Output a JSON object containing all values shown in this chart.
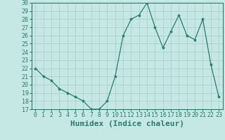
{
  "xlabel": "Humidex (Indice chaleur)",
  "x": [
    0,
    1,
    2,
    3,
    4,
    5,
    6,
    7,
    8,
    9,
    10,
    11,
    12,
    13,
    14,
    15,
    16,
    17,
    18,
    19,
    20,
    21,
    22,
    23
  ],
  "y": [
    22,
    21,
    20.5,
    19.5,
    19,
    18.5,
    18,
    17,
    17,
    18,
    21,
    26,
    28,
    28.5,
    30,
    27,
    24.5,
    26.5,
    28.5,
    26,
    25.5,
    28,
    22.5,
    18.5
  ],
  "line_color": "#2d7a6e",
  "marker": "*",
  "marker_size": 3,
  "bg_color": "#c5e8e5",
  "grid_color": "#a8ccc9",
  "ylim": [
    17,
    30
  ],
  "xlim": [
    -0.5,
    23.5
  ],
  "yticks": [
    17,
    18,
    19,
    20,
    21,
    22,
    23,
    24,
    25,
    26,
    27,
    28,
    29,
    30
  ],
  "xticks": [
    0,
    1,
    2,
    3,
    4,
    5,
    6,
    7,
    8,
    9,
    10,
    11,
    12,
    13,
    14,
    15,
    16,
    17,
    18,
    19,
    20,
    21,
    22,
    23
  ],
  "tick_fontsize": 6,
  "xlabel_fontsize": 8
}
